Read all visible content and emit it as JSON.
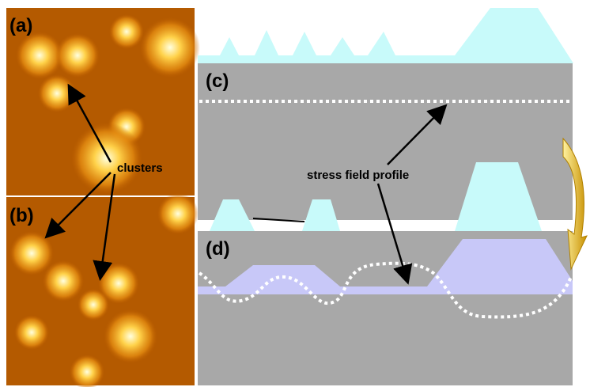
{
  "panels": [
    {
      "label": "(a)"
    },
    {
      "label": "(b)"
    },
    {
      "label": "(c)"
    },
    {
      "label": "(d)"
    }
  ],
  "annotations": {
    "clusters": "clusters",
    "stress_profile": "stress field profile"
  }
}
